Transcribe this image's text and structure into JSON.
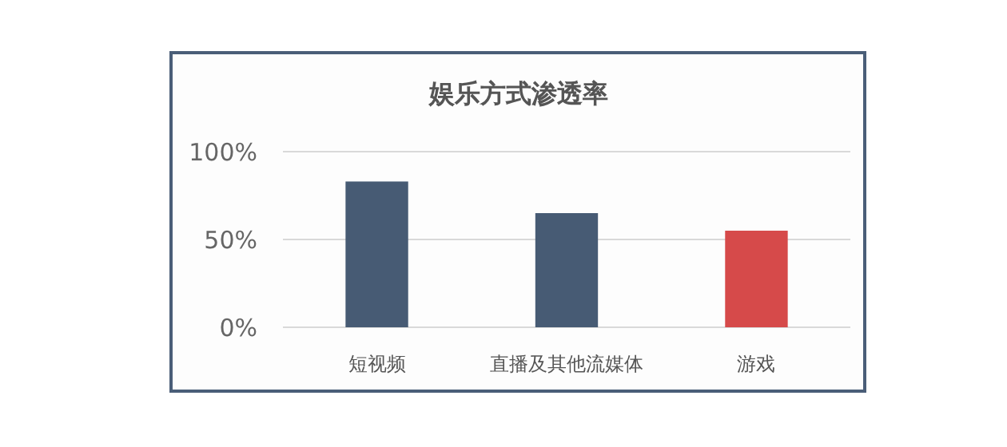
{
  "chart_data": {
    "type": "bar",
    "title": "娱乐方式渗透率",
    "categories": [
      "短视频",
      "直播及其他流媒体",
      "游戏"
    ],
    "values": [
      83,
      65,
      55
    ],
    "colors": [
      "#475b74",
      "#475b74",
      "#d64a4a"
    ],
    "ylim": [
      0,
      100
    ],
    "yticks": [
      {
        "value": 0,
        "label": "0%"
      },
      {
        "value": 50,
        "label": "50%"
      },
      {
        "value": 100,
        "label": "100%"
      }
    ],
    "grid": "y"
  }
}
